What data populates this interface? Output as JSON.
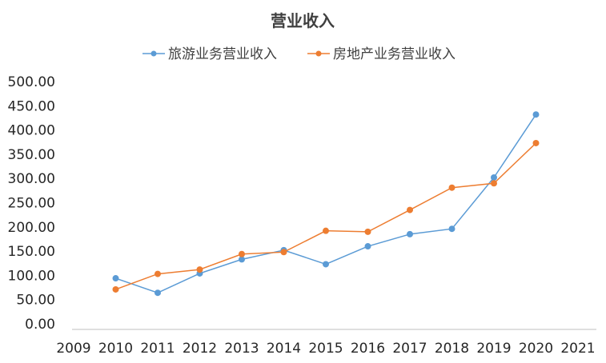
{
  "chart_data": {
    "type": "line",
    "title": "营业收入",
    "categories": [
      "2009",
      "2010",
      "2011",
      "2012",
      "2013",
      "2014",
      "2015",
      "2016",
      "2017",
      "2018",
      "2019",
      "2020",
      "2021"
    ],
    "series": [
      {
        "name": "旅游业务营业收入",
        "color": "#5b9bd5",
        "values": [
          null,
          94,
          64,
          104,
          133,
          152,
          123,
          160,
          185,
          196,
          302,
          432,
          null
        ]
      },
      {
        "name": "房地产业务营业收入",
        "color": "#ed7d31",
        "values": [
          null,
          71,
          103,
          112,
          144,
          148,
          192,
          190,
          235,
          281,
          290,
          373,
          null
        ]
      }
    ],
    "yticks": [
      "0.00",
      "50.00",
      "100.00",
      "150.00",
      "200.00",
      "250.00",
      "300.00",
      "350.00",
      "400.00",
      "450.00",
      "500.00"
    ],
    "ylim": [
      0,
      500
    ],
    "grid": false,
    "legend_position": "top"
  }
}
